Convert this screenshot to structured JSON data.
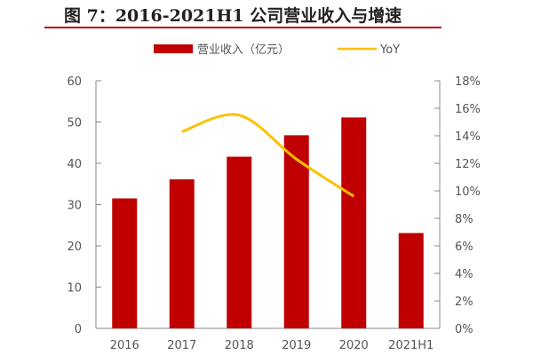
{
  "chart_data": {
    "type": "bar+line",
    "title": "图 7：2016-2021H1 公司营业收入与增速",
    "categories": [
      "2016",
      "2017",
      "2018",
      "2019",
      "2020",
      "2021H1"
    ],
    "series": [
      {
        "name": "营业收入（亿元）",
        "type": "bar",
        "axis": "left",
        "color": "#c00000",
        "values": [
          31.5,
          36.1,
          41.6,
          46.8,
          51.1,
          23.1
        ]
      },
      {
        "name": "YoY",
        "type": "line",
        "axis": "right",
        "color": "#ffc000",
        "values": [
          null,
          14.3,
          15.5,
          12.3,
          9.6,
          null
        ]
      }
    ],
    "y_left": {
      "range": [
        0,
        60
      ],
      "ticks": [
        "0",
        "10",
        "20",
        "30",
        "40",
        "50",
        "60"
      ]
    },
    "y_right": {
      "range": [
        0,
        18
      ],
      "ticks": [
        "0%",
        "2%",
        "4%",
        "6%",
        "8%",
        "10%",
        "12%",
        "14%",
        "16%",
        "18%"
      ]
    },
    "legend": "top",
    "grid": false
  }
}
